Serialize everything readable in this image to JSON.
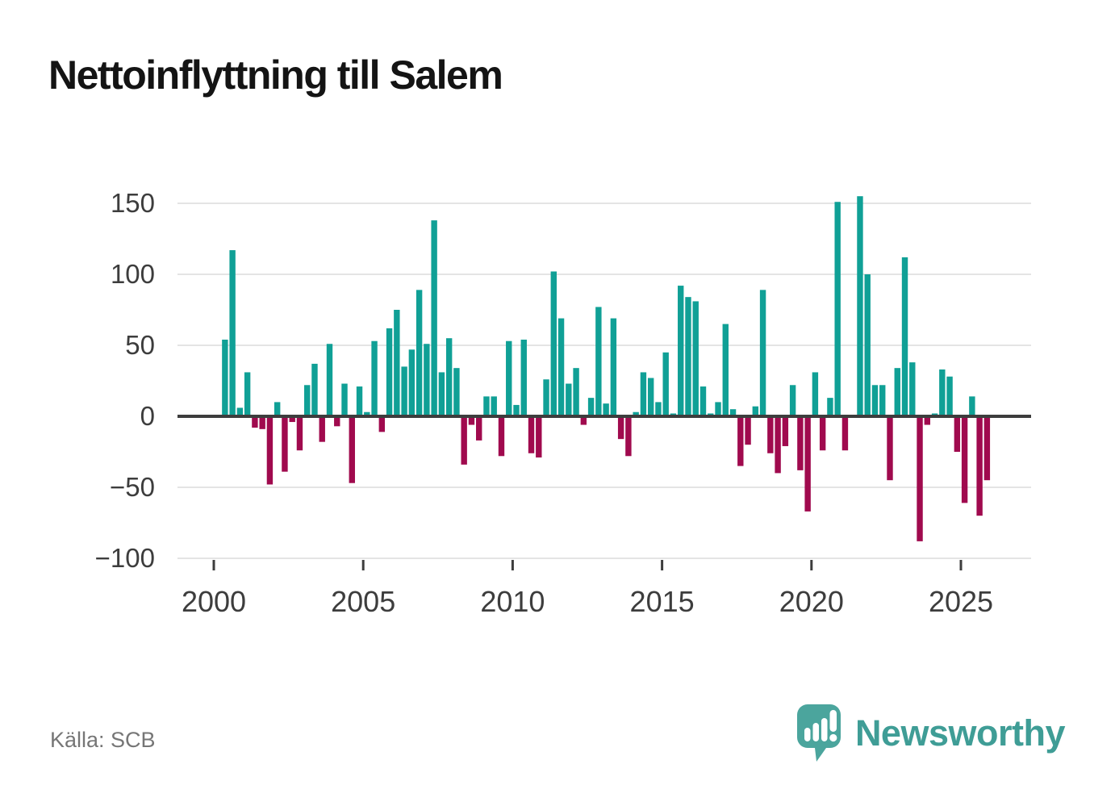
{
  "page": {
    "title": "Nettoinflyttning till Salem",
    "source": "Källa: SCB",
    "brand": "Newsworthy"
  },
  "colors": {
    "positive": "#10a096",
    "negative": "#a00a4e",
    "axis": "#3d3d3d",
    "grid": "#e4e4e4",
    "tick_label": "#3d3d3d",
    "title": "#141414",
    "source": "#767676",
    "brand_text": "#3f9d96",
    "logo_fill": "#4ba59d"
  },
  "chart_data": {
    "type": "bar",
    "title": "Nettoinflyttning till Salem",
    "xlabel": "",
    "ylabel": "",
    "grid": "horizontal",
    "legend": "none",
    "ylim": [
      -100,
      155
    ],
    "y_ticks": [
      150,
      100,
      50,
      0,
      -50,
      -100
    ],
    "y_tick_labels": [
      "150",
      "100",
      "50",
      "0",
      "−50",
      "−100"
    ],
    "x_tick_years": [
      2000,
      2005,
      2010,
      2015,
      2020,
      2025
    ],
    "x_tick_labels": [
      "2000",
      "2005",
      "2010",
      "2015",
      "2020",
      "2025"
    ],
    "categories": [
      "2000 Q1",
      "2000 Q2",
      "2000 Q3",
      "2000 Q4",
      "2001 Q1",
      "2001 Q2",
      "2001 Q3",
      "2001 Q4",
      "2002 Q1",
      "2002 Q2",
      "2002 Q3",
      "2002 Q4",
      "2003 Q1",
      "2003 Q2",
      "2003 Q3",
      "2003 Q4",
      "2004 Q1",
      "2004 Q2",
      "2004 Q3",
      "2004 Q4",
      "2005 Q1",
      "2005 Q2",
      "2005 Q3",
      "2005 Q4",
      "2006 Q1",
      "2006 Q2",
      "2006 Q3",
      "2006 Q4",
      "2007 Q1",
      "2007 Q2",
      "2007 Q3",
      "2007 Q4",
      "2008 Q1",
      "2008 Q2",
      "2008 Q3",
      "2008 Q4",
      "2009 Q1",
      "2009 Q2",
      "2009 Q3",
      "2009 Q4",
      "2010 Q1",
      "2010 Q2",
      "2010 Q3",
      "2010 Q4",
      "2011 Q1",
      "2011 Q2",
      "2011 Q3",
      "2011 Q4",
      "2012 Q1",
      "2012 Q2",
      "2012 Q3",
      "2012 Q4",
      "2013 Q1",
      "2013 Q2",
      "2013 Q3",
      "2013 Q4",
      "2014 Q1",
      "2014 Q2",
      "2014 Q3",
      "2014 Q4",
      "2015 Q1",
      "2015 Q2",
      "2015 Q3",
      "2015 Q4",
      "2016 Q1",
      "2016 Q2",
      "2016 Q3",
      "2016 Q4",
      "2017 Q1",
      "2017 Q2",
      "2017 Q3",
      "2017 Q4",
      "2018 Q1",
      "2018 Q2",
      "2018 Q3",
      "2018 Q4",
      "2019 Q1",
      "2019 Q2",
      "2019 Q3",
      "2019 Q4",
      "2020 Q1",
      "2020 Q2",
      "2020 Q3",
      "2020 Q4",
      "2021 Q1",
      "2021 Q2",
      "2021 Q3",
      "2021 Q4",
      "2022 Q1",
      "2022 Q2",
      "2022 Q3",
      "2022 Q4",
      "2023 Q1",
      "2023 Q2",
      "2023 Q3",
      "2023 Q4",
      "2024 Q1",
      "2024 Q2",
      "2024 Q3",
      "2024 Q4",
      "2025 Q1",
      "2025 Q2",
      "2025 Q3",
      "2025 Q4"
    ],
    "values": [
      0,
      54,
      117,
      6,
      31,
      -8,
      -9,
      -48,
      10,
      -39,
      -4,
      -24,
      22,
      37,
      -18,
      51,
      -7,
      23,
      -47,
      21,
      3,
      53,
      -11,
      62,
      75,
      35,
      47,
      89,
      51,
      138,
      31,
      55,
      34,
      -34,
      -6,
      -17,
      14,
      14,
      -28,
      53,
      8,
      54,
      -26,
      -29,
      26,
      102,
      69,
      23,
      34,
      -6,
      13,
      77,
      9,
      69,
      -16,
      -28,
      3,
      31,
      27,
      10,
      45,
      2,
      92,
      84,
      81,
      21,
      2,
      10,
      65,
      5,
      -35,
      -20,
      7,
      89,
      -26,
      -40,
      -21,
      22,
      -38,
      -67,
      31,
      -24,
      13,
      151,
      -24,
      0,
      155,
      100,
      22,
      22,
      -45,
      34,
      112,
      38,
      -88,
      -6,
      2,
      33,
      28,
      -25,
      -61,
      14,
      -70,
      -45
    ]
  }
}
